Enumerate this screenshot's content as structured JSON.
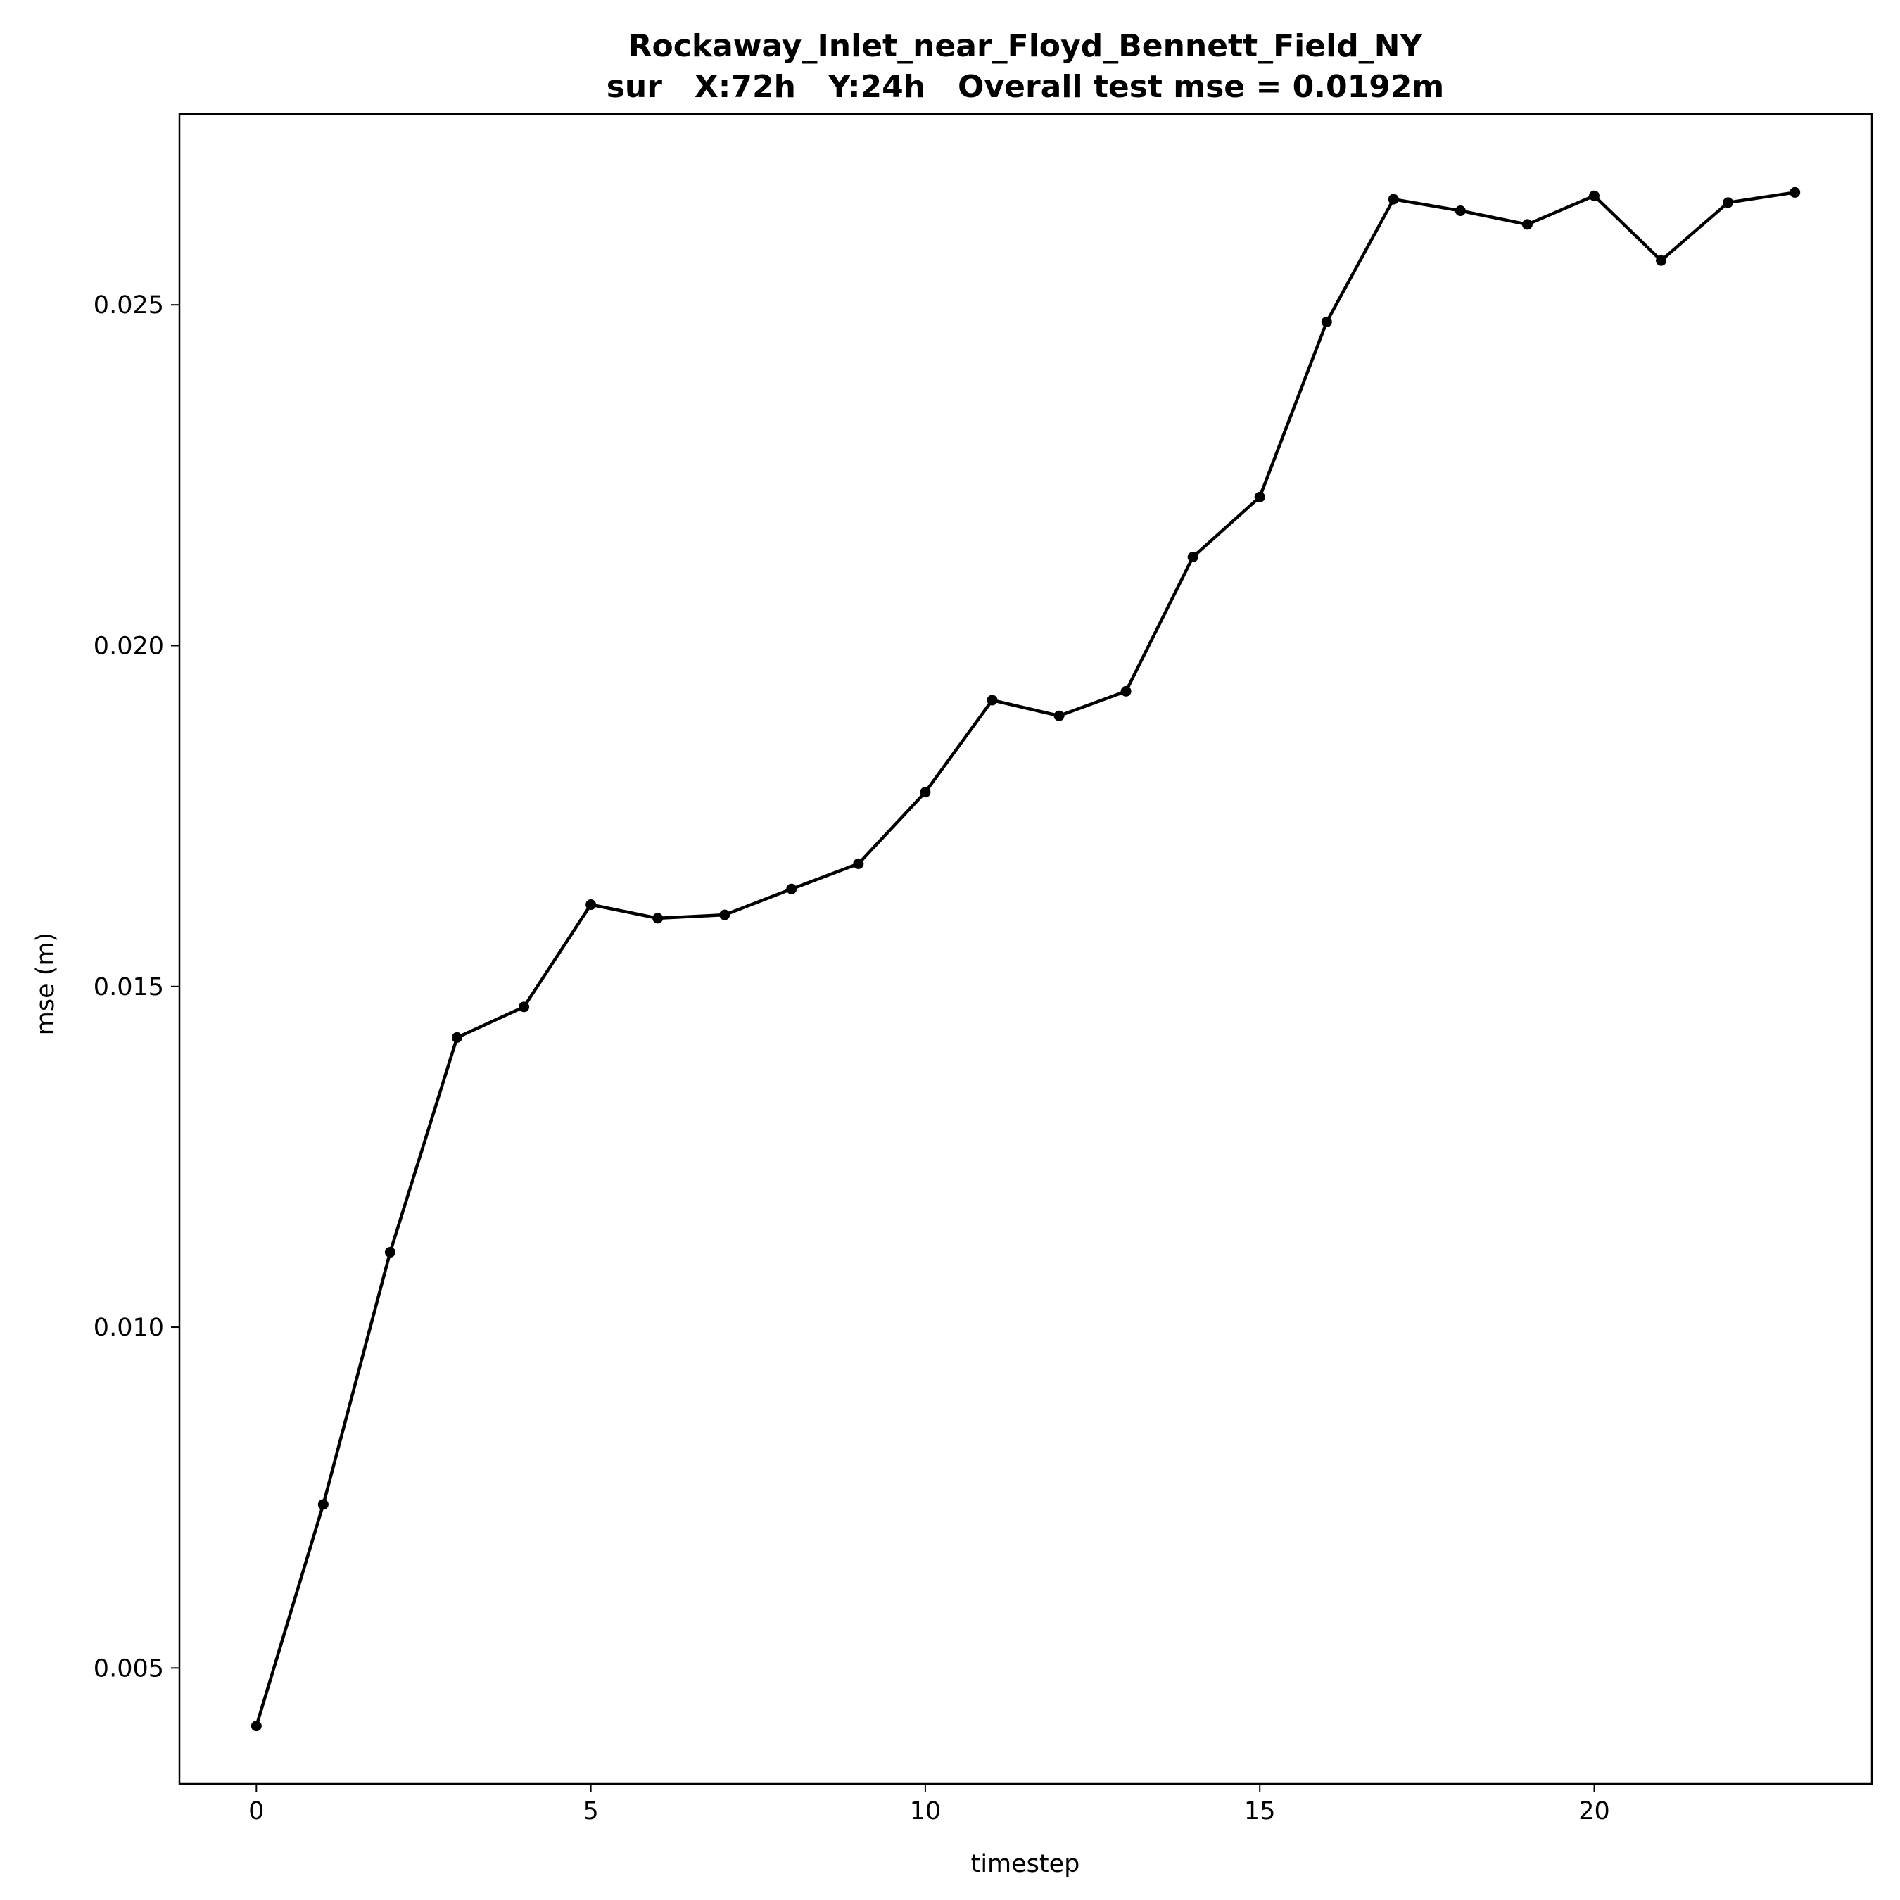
{
  "chart_data": {
    "type": "line",
    "title": "Rockaway_Inlet_near_Floyd_Bennett_Field_NY",
    "subtitle": "sur   X:72h   Y:24h   Overall test mse = 0.0192m",
    "xlabel": "timestep",
    "ylabel": "mse (m)",
    "xlim": [
      -1.15,
      24.15
    ],
    "ylim": [
      0.0033,
      0.0278
    ],
    "xticks": [
      0,
      5,
      10,
      15,
      20
    ],
    "xtick_labels": [
      "0",
      "5",
      "10",
      "15",
      "20"
    ],
    "yticks": [
      0.005,
      0.01,
      0.015,
      0.02,
      0.025
    ],
    "ytick_labels": [
      "0.005",
      "0.010",
      "0.015",
      "0.020",
      "0.025"
    ],
    "grid": false,
    "line_color": "#000000",
    "marker": "circle",
    "x": [
      0,
      1,
      2,
      3,
      4,
      5,
      6,
      7,
      8,
      9,
      10,
      11,
      12,
      13,
      14,
      15,
      16,
      17,
      18,
      19,
      20,
      21,
      22,
      23
    ],
    "y": [
      0.00415,
      0.0074,
      0.0111,
      0.01425,
      0.0147,
      0.0162,
      0.016,
      0.01605,
      0.01643,
      0.0168,
      0.01785,
      0.0192,
      0.01897,
      0.01933,
      0.0213,
      0.02218,
      0.02475,
      0.02655,
      0.02638,
      0.02618,
      0.0266,
      0.02565,
      0.0265,
      0.02665
    ]
  }
}
